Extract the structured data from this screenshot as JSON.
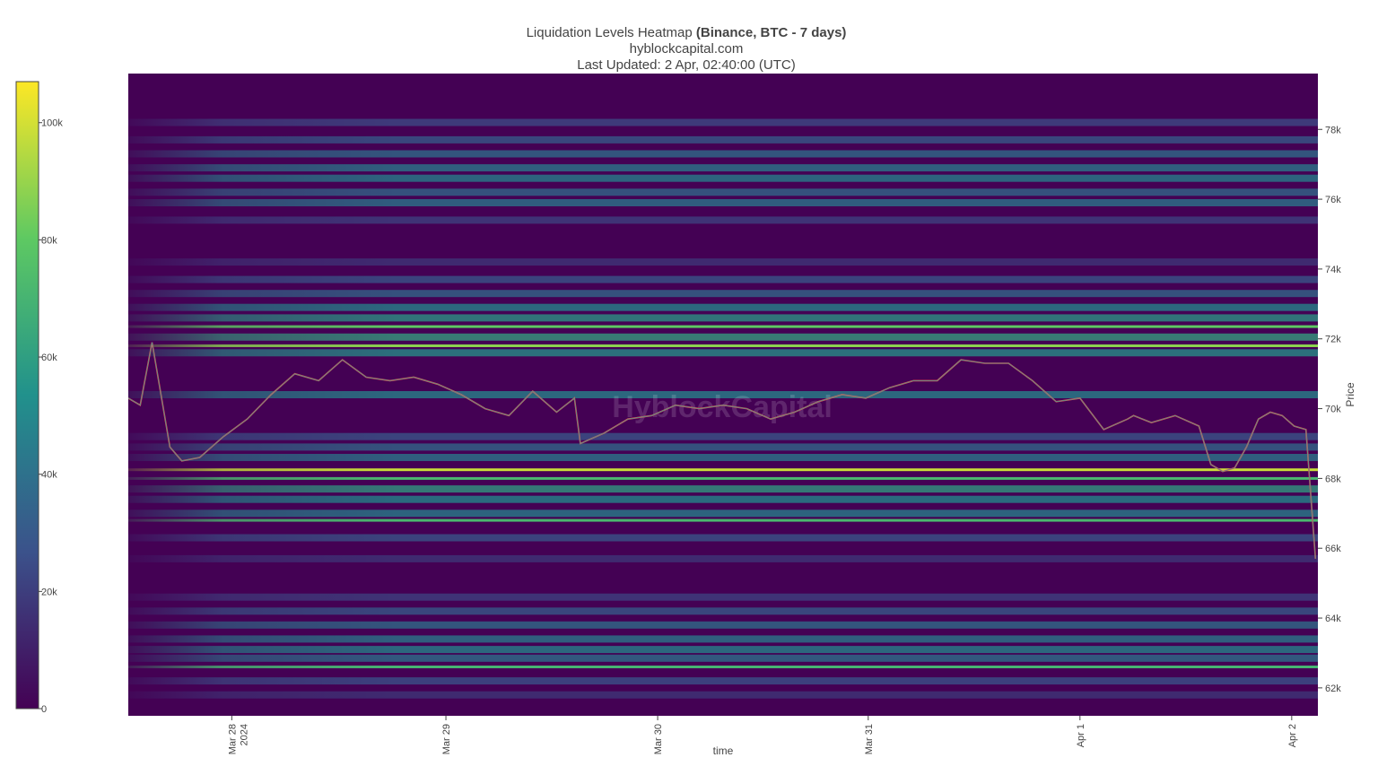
{
  "header": {
    "title_prefix": "Liquidation Levels Heatmap",
    "title_bold": "(Binance, BTC - 7 days)",
    "source": "hyblockcapital.com",
    "updated": "Last Updated: 2 Apr, 02:40:00 (UTC)"
  },
  "watermark": "HyblockCapital",
  "colors": {
    "background": "#440154",
    "colorscale": [
      "#440154",
      "#3b528b",
      "#21918c",
      "#5ec962",
      "#fde725"
    ],
    "candle_up": "#26a69a",
    "candle_down": "#ef5350"
  },
  "chart_data": {
    "type": "heatmap",
    "xlabel": "time",
    "ylabel": "Price",
    "x_ticks": [
      "Mar 28\n2024",
      "Mar 29",
      "Mar 30",
      "Mar 31",
      "Apr 1",
      "Apr 2"
    ],
    "y_ticks": [
      "62k",
      "64k",
      "66k",
      "68k",
      "70k",
      "72k",
      "74k",
      "76k",
      "78k"
    ],
    "ylim": [
      61200,
      79600
    ],
    "colorbar": {
      "ticks": [
        "0",
        "20k",
        "40k",
        "60k",
        "80k",
        "100k"
      ],
      "range": [
        0,
        107000
      ]
    },
    "price_series": {
      "t": [
        0,
        0.01,
        0.02,
        0.035,
        0.045,
        0.06,
        0.08,
        0.1,
        0.12,
        0.14,
        0.16,
        0.18,
        0.2,
        0.22,
        0.24,
        0.26,
        0.28,
        0.3,
        0.32,
        0.34,
        0.36,
        0.375,
        0.38,
        0.4,
        0.42,
        0.44,
        0.46,
        0.48,
        0.5,
        0.52,
        0.54,
        0.56,
        0.58,
        0.6,
        0.62,
        0.64,
        0.66,
        0.68,
        0.7,
        0.72,
        0.74,
        0.76,
        0.78,
        0.8,
        0.82,
        0.84,
        0.845,
        0.86,
        0.88,
        0.9,
        0.91,
        0.92,
        0.93,
        0.94,
        0.95,
        0.96,
        0.97,
        0.98,
        0.99,
        0.998
      ],
      "p": [
        70300,
        70100,
        71900,
        68900,
        68500,
        68600,
        69200,
        69700,
        70400,
        71000,
        70800,
        71400,
        70900,
        70800,
        70900,
        70700,
        70400,
        70000,
        69800,
        70500,
        69900,
        70300,
        69000,
        69300,
        69700,
        69800,
        70100,
        70000,
        70100,
        70000,
        69700,
        69900,
        70200,
        70400,
        70300,
        70600,
        70800,
        70800,
        71400,
        71300,
        71300,
        70800,
        70200,
        70300,
        69400,
        69700,
        69800,
        69600,
        69800,
        69500,
        68400,
        68200,
        68300,
        68900,
        69700,
        69900,
        69800,
        69500,
        69400,
        65700
      ]
    },
    "liquidation_levels": [
      {
        "price": 78200,
        "value": 25000
      },
      {
        "price": 77700,
        "value": 32000
      },
      {
        "price": 77300,
        "value": 40000
      },
      {
        "price": 76900,
        "value": 45000
      },
      {
        "price": 76600,
        "value": 48000
      },
      {
        "price": 76200,
        "value": 38000
      },
      {
        "price": 75900,
        "value": 44000
      },
      {
        "price": 75400,
        "value": 22000
      },
      {
        "price": 74200,
        "value": 18000
      },
      {
        "price": 73700,
        "value": 30000
      },
      {
        "price": 73300,
        "value": 38000
      },
      {
        "price": 72900,
        "value": 50000
      },
      {
        "price": 72600,
        "value": 58000
      },
      {
        "price": 72350,
        "value": 80000
      },
      {
        "price": 72050,
        "value": 62000
      },
      {
        "price": 71800,
        "value": 88000
      },
      {
        "price": 71600,
        "value": 55000
      },
      {
        "price": 70400,
        "value": 50000
      },
      {
        "price": 69200,
        "value": 30000
      },
      {
        "price": 68900,
        "value": 38000
      },
      {
        "price": 68600,
        "value": 45000
      },
      {
        "price": 68250,
        "value": 98000
      },
      {
        "price": 68000,
        "value": 72000
      },
      {
        "price": 67700,
        "value": 60000
      },
      {
        "price": 67400,
        "value": 52000
      },
      {
        "price": 67000,
        "value": 48000
      },
      {
        "price": 66800,
        "value": 72000
      },
      {
        "price": 66300,
        "value": 30000
      },
      {
        "price": 65700,
        "value": 18000
      },
      {
        "price": 64600,
        "value": 22000
      },
      {
        "price": 64200,
        "value": 32000
      },
      {
        "price": 63800,
        "value": 40000
      },
      {
        "price": 63400,
        "value": 45000
      },
      {
        "price": 63100,
        "value": 50000
      },
      {
        "price": 62850,
        "value": 42000
      },
      {
        "price": 62600,
        "value": 70000
      },
      {
        "price": 62200,
        "value": 28000
      },
      {
        "price": 61800,
        "value": 18000
      }
    ]
  }
}
